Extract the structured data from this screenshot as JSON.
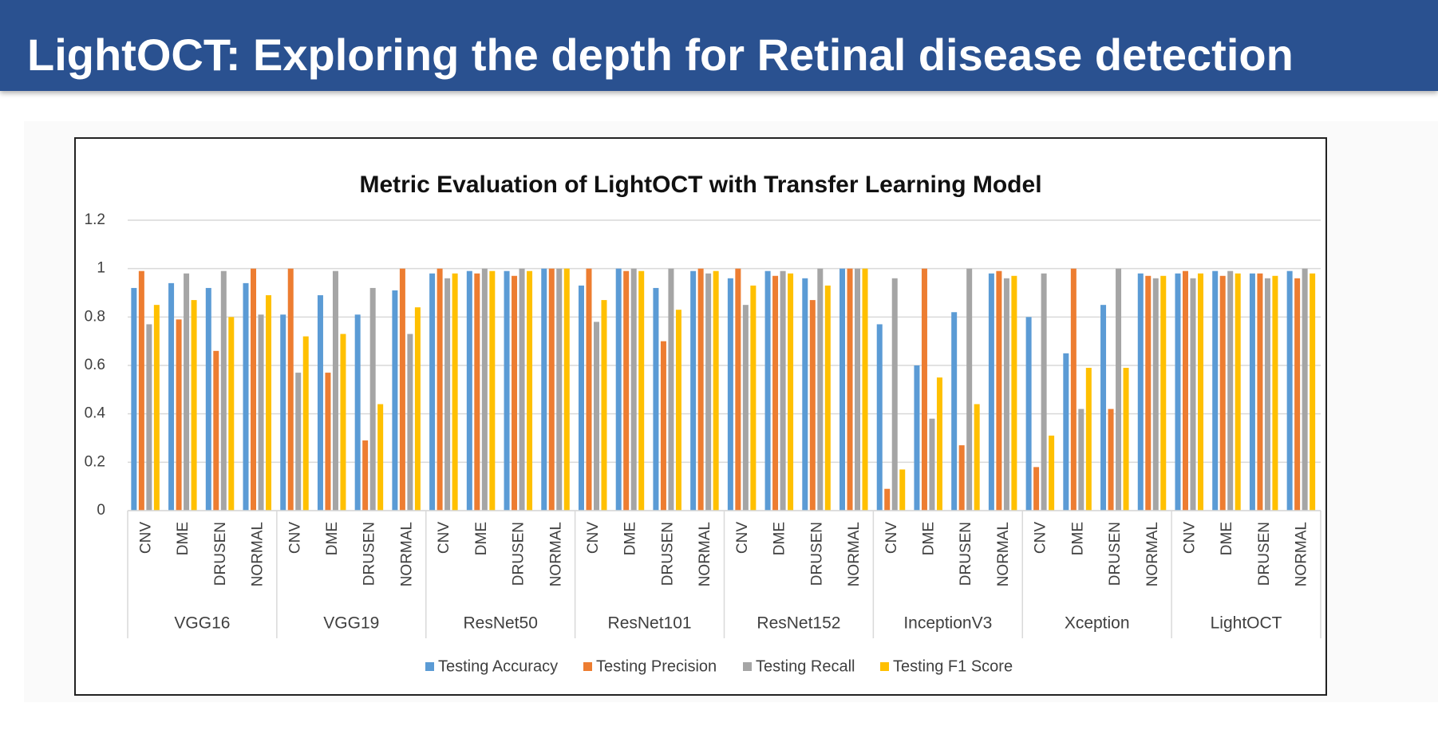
{
  "header": {
    "title": "LightOCT: Exploring the depth for Retinal disease detection"
  },
  "chart_data": {
    "type": "bar",
    "title": "Metric Evaluation of LightOCT with Transfer Learning Model",
    "groups": [
      "VGG16",
      "VGG19",
      "ResNet50",
      "ResNet101",
      "ResNet152",
      "InceptionV3",
      "Xception",
      "LightOCT"
    ],
    "categories": [
      "CNV",
      "DME",
      "DRUSEN",
      "NORMAL",
      "CNV",
      "DME",
      "DRUSEN",
      "NORMAL",
      "CNV",
      "DME",
      "DRUSEN",
      "NORMAL",
      "CNV",
      "DME",
      "DRUSEN",
      "NORMAL",
      "CNV",
      "DME",
      "DRUSEN",
      "NORMAL",
      "CNV",
      "DME",
      "DRUSEN",
      "NORMAL",
      "CNV",
      "DME",
      "DRUSEN",
      "NORMAL",
      "CNV",
      "DME",
      "DRUSEN",
      "NORMAL"
    ],
    "series": [
      {
        "name": "Testing Accuracy",
        "color": "#5b9bd5",
        "values": [
          0.92,
          0.94,
          0.92,
          0.94,
          0.81,
          0.89,
          0.81,
          0.91,
          0.98,
          0.99,
          0.99,
          1.0,
          0.93,
          1.0,
          0.92,
          0.99,
          0.96,
          0.99,
          0.96,
          1.0,
          0.77,
          0.6,
          0.82,
          0.98,
          0.8,
          0.65,
          0.85,
          0.98,
          0.98,
          0.99,
          0.98,
          0.99
        ]
      },
      {
        "name": "Testing Precision",
        "color": "#ed7d31",
        "values": [
          0.99,
          0.79,
          0.66,
          1.0,
          1.0,
          0.57,
          0.29,
          1.0,
          1.0,
          0.98,
          0.97,
          1.0,
          1.0,
          0.99,
          0.7,
          1.0,
          1.0,
          0.97,
          0.87,
          1.0,
          0.09,
          1.0,
          0.27,
          0.99,
          0.18,
          1.0,
          0.42,
          0.97,
          0.99,
          0.97,
          0.98,
          0.96
        ]
      },
      {
        "name": "Testing Recall",
        "color": "#a5a5a5",
        "values": [
          0.77,
          0.98,
          0.99,
          0.81,
          0.57,
          0.99,
          0.92,
          0.73,
          0.96,
          1.0,
          1.0,
          1.0,
          0.78,
          1.0,
          1.0,
          0.98,
          0.85,
          0.99,
          1.0,
          1.0,
          0.96,
          0.38,
          1.0,
          0.96,
          0.98,
          0.42,
          1.0,
          0.96,
          0.96,
          0.99,
          0.96,
          1.0
        ]
      },
      {
        "name": "Testing F1 Score",
        "color": "#ffc000",
        "values": [
          0.85,
          0.87,
          0.8,
          0.89,
          0.72,
          0.73,
          0.44,
          0.84,
          0.98,
          0.99,
          0.99,
          1.0,
          0.87,
          0.99,
          0.83,
          0.99,
          0.93,
          0.98,
          0.93,
          1.0,
          0.17,
          0.55,
          0.44,
          0.97,
          0.31,
          0.59,
          0.59,
          0.97,
          0.98,
          0.98,
          0.97,
          0.98
        ]
      }
    ],
    "ylim": [
      0,
      1.2
    ],
    "yticks": [
      0,
      0.2,
      0.4,
      0.6,
      0.8,
      1,
      1.2
    ],
    "grid": true,
    "legend": "bottom"
  }
}
